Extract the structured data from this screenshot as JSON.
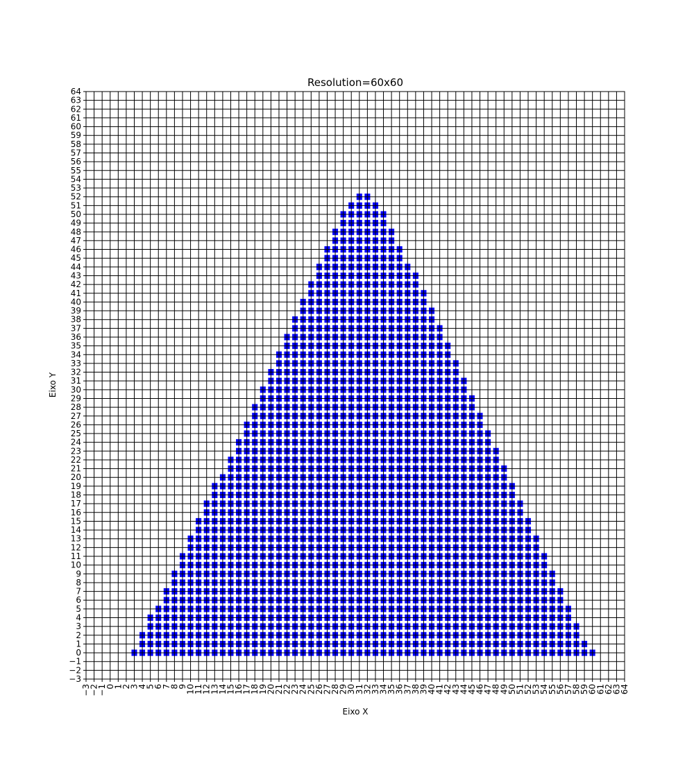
{
  "chart_data": {
    "type": "heatmap",
    "title": "Resolution=60x60",
    "xlabel": "Eixo X",
    "ylabel": "Eixo Y",
    "xlim": [
      -3,
      64
    ],
    "ylim": [
      -3,
      64
    ],
    "grid": true,
    "fill_color": "#0000ff",
    "cell_edge_color": "#ffffff",
    "grid_color": "#000000",
    "x_ticks": [
      -3,
      -2,
      -1,
      0,
      1,
      2,
      3,
      4,
      5,
      6,
      7,
      8,
      9,
      10,
      11,
      12,
      13,
      14,
      15,
      16,
      17,
      18,
      19,
      20,
      21,
      22,
      23,
      24,
      25,
      26,
      27,
      28,
      29,
      30,
      31,
      32,
      33,
      34,
      35,
      36,
      37,
      38,
      39,
      40,
      41,
      42,
      43,
      44,
      45,
      46,
      47,
      48,
      49,
      50,
      51,
      52,
      53,
      54,
      55,
      56,
      57,
      58,
      59,
      60,
      61,
      62,
      63,
      64
    ],
    "y_ticks": [
      -3,
      -2,
      -1,
      0,
      1,
      2,
      3,
      4,
      5,
      6,
      7,
      8,
      9,
      10,
      11,
      12,
      13,
      14,
      15,
      16,
      17,
      18,
      19,
      20,
      21,
      22,
      23,
      24,
      25,
      26,
      27,
      28,
      29,
      30,
      31,
      32,
      33,
      34,
      35,
      36,
      37,
      38,
      39,
      40,
      41,
      42,
      43,
      44,
      45,
      46,
      47,
      48,
      49,
      50,
      51,
      52,
      53,
      54,
      55,
      56,
      57,
      58,
      59,
      60,
      61,
      62,
      63,
      64
    ],
    "filled_rows": [
      {
        "y": 0,
        "x_start": 3,
        "x_end": 60
      },
      {
        "y": 1,
        "x_start": 4,
        "x_end": 59
      },
      {
        "y": 2,
        "x_start": 4,
        "x_end": 58
      },
      {
        "y": 3,
        "x_start": 5,
        "x_end": 58
      },
      {
        "y": 4,
        "x_start": 5,
        "x_end": 57
      },
      {
        "y": 5,
        "x_start": 6,
        "x_end": 57
      },
      {
        "y": 6,
        "x_start": 7,
        "x_end": 56
      },
      {
        "y": 7,
        "x_start": 7,
        "x_end": 56
      },
      {
        "y": 8,
        "x_start": 8,
        "x_end": 55
      },
      {
        "y": 9,
        "x_start": 8,
        "x_end": 55
      },
      {
        "y": 10,
        "x_start": 9,
        "x_end": 54
      },
      {
        "y": 11,
        "x_start": 9,
        "x_end": 54
      },
      {
        "y": 12,
        "x_start": 10,
        "x_end": 53
      },
      {
        "y": 13,
        "x_start": 10,
        "x_end": 53
      },
      {
        "y": 14,
        "x_start": 11,
        "x_end": 52
      },
      {
        "y": 15,
        "x_start": 11,
        "x_end": 52
      },
      {
        "y": 16,
        "x_start": 12,
        "x_end": 51
      },
      {
        "y": 17,
        "x_start": 12,
        "x_end": 51
      },
      {
        "y": 18,
        "x_start": 13,
        "x_end": 50
      },
      {
        "y": 19,
        "x_start": 13,
        "x_end": 50
      },
      {
        "y": 20,
        "x_start": 14,
        "x_end": 49
      },
      {
        "y": 21,
        "x_start": 15,
        "x_end": 49
      },
      {
        "y": 22,
        "x_start": 15,
        "x_end": 48
      },
      {
        "y": 23,
        "x_start": 16,
        "x_end": 48
      },
      {
        "y": 24,
        "x_start": 16,
        "x_end": 47
      },
      {
        "y": 25,
        "x_start": 17,
        "x_end": 47
      },
      {
        "y": 26,
        "x_start": 17,
        "x_end": 46
      },
      {
        "y": 27,
        "x_start": 18,
        "x_end": 46
      },
      {
        "y": 28,
        "x_start": 18,
        "x_end": 45
      },
      {
        "y": 29,
        "x_start": 19,
        "x_end": 45
      },
      {
        "y": 30,
        "x_start": 19,
        "x_end": 44
      },
      {
        "y": 31,
        "x_start": 20,
        "x_end": 44
      },
      {
        "y": 32,
        "x_start": 20,
        "x_end": 43
      },
      {
        "y": 33,
        "x_start": 21,
        "x_end": 43
      },
      {
        "y": 34,
        "x_start": 21,
        "x_end": 42
      },
      {
        "y": 35,
        "x_start": 22,
        "x_end": 42
      },
      {
        "y": 36,
        "x_start": 22,
        "x_end": 41
      },
      {
        "y": 37,
        "x_start": 23,
        "x_end": 41
      },
      {
        "y": 38,
        "x_start": 23,
        "x_end": 40
      },
      {
        "y": 39,
        "x_start": 24,
        "x_end": 40
      },
      {
        "y": 40,
        "x_start": 24,
        "x_end": 39
      },
      {
        "y": 41,
        "x_start": 25,
        "x_end": 39
      },
      {
        "y": 42,
        "x_start": 25,
        "x_end": 38
      },
      {
        "y": 43,
        "x_start": 26,
        "x_end": 38
      },
      {
        "y": 44,
        "x_start": 26,
        "x_end": 37
      },
      {
        "y": 45,
        "x_start": 27,
        "x_end": 36
      },
      {
        "y": 46,
        "x_start": 27,
        "x_end": 36
      },
      {
        "y": 47,
        "x_start": 28,
        "x_end": 35
      },
      {
        "y": 48,
        "x_start": 28,
        "x_end": 35
      },
      {
        "y": 49,
        "x_start": 29,
        "x_end": 34
      },
      {
        "y": 50,
        "x_start": 29,
        "x_end": 34
      },
      {
        "y": 51,
        "x_start": 30,
        "x_end": 33
      },
      {
        "y": 52,
        "x_start": 31,
        "x_end": 32
      }
    ]
  }
}
